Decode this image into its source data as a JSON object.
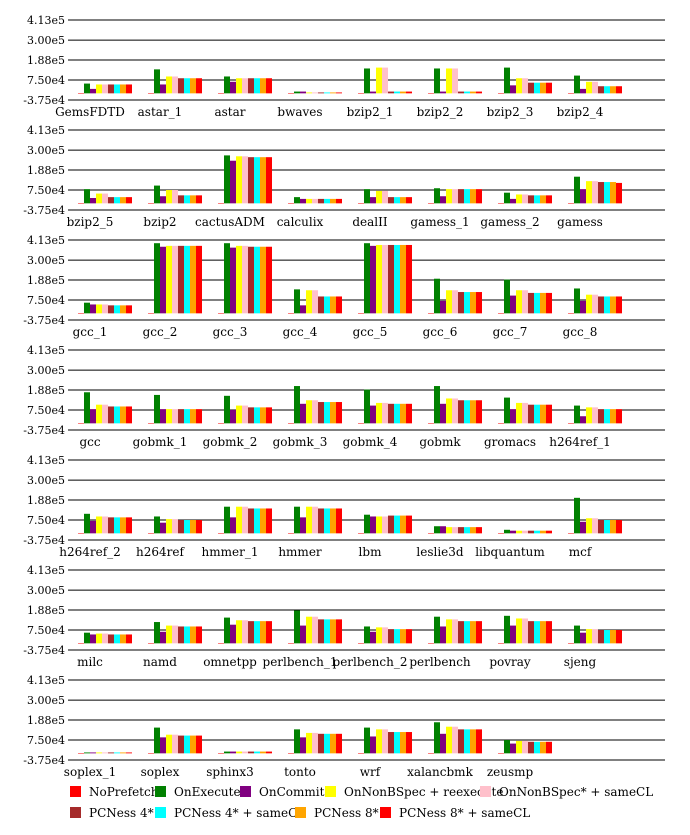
{
  "chart_data": {
    "type": "bar",
    "ylim": [
      -37500,
      413000
    ],
    "yticks": [
      -37500,
      75000,
      188000,
      300000,
      413000
    ],
    "ytick_labels": [
      "-3.75e4",
      "7.50e4",
      "1.88e5",
      "3.00e5",
      "4.13e5"
    ],
    "grid": "horizontal",
    "legend_position": "bottom",
    "series": [
      {
        "name": "NoPrefetch",
        "color": "#ff0000"
      },
      {
        "name": "OnExecute",
        "color": "#008000"
      },
      {
        "name": "OnCommit",
        "color": "#800080"
      },
      {
        "name": "OnNonBSpec + reexecute",
        "color": "#ffff00"
      },
      {
        "name": "OnNonBSpec* + sameCL",
        "color": "#ffc0cb"
      },
      {
        "name": "PCNess 4*",
        "color": "#a52a2a"
      },
      {
        "name": "PCNess 4* + sameCL",
        "color": "#00ffff"
      },
      {
        "name": "PCNess 8*",
        "color": "#ffa500"
      },
      {
        "name": "PCNess 8* + sameCL",
        "color": "#ff0000"
      }
    ],
    "panels": [
      {
        "categories": [
          "GemsFDTD",
          "astar_1",
          "astar",
          "bwaves",
          "bzip2_1",
          "bzip2_2",
          "bzip2_3",
          "bzip2_4"
        ],
        "values": [
          [
            0,
            55000,
            25000,
            50000,
            50000,
            50000,
            50000,
            50000,
            50000
          ],
          [
            0,
            135000,
            50000,
            95000,
            95000,
            85000,
            85000,
            85000,
            85000
          ],
          [
            0,
            95000,
            65000,
            85000,
            85000,
            85000,
            85000,
            85000,
            85000
          ],
          [
            0,
            10000,
            10000,
            5000,
            5000,
            5000,
            5000,
            5000,
            5000
          ],
          [
            0,
            140000,
            10000,
            145000,
            145000,
            10000,
            10000,
            10000,
            10000
          ],
          [
            0,
            140000,
            10000,
            140000,
            140000,
            10000,
            10000,
            10000,
            10000
          ],
          [
            0,
            145000,
            45000,
            85000,
            85000,
            60000,
            60000,
            60000,
            60000
          ],
          [
            0,
            100000,
            25000,
            65000,
            65000,
            40000,
            40000,
            40000,
            40000
          ]
        ]
      },
      {
        "categories": [
          "bzip2_5",
          "bzip2",
          "cactusADM",
          "calculix",
          "dealII",
          "gamess_1",
          "gamess_2",
          "gamess"
        ],
        "values": [
          [
            0,
            80000,
            30000,
            55000,
            55000,
            35000,
            35000,
            35000,
            35000
          ],
          [
            0,
            100000,
            40000,
            75000,
            75000,
            45000,
            45000,
            45000,
            45000
          ],
          [
            0,
            270000,
            240000,
            265000,
            265000,
            260000,
            260000,
            260000,
            260000
          ],
          [
            0,
            35000,
            25000,
            25000,
            25000,
            25000,
            25000,
            25000,
            25000
          ],
          [
            0,
            80000,
            35000,
            70000,
            70000,
            35000,
            35000,
            35000,
            35000
          ],
          [
            0,
            85000,
            40000,
            80000,
            80000,
            80000,
            80000,
            80000,
            80000
          ],
          [
            0,
            60000,
            25000,
            50000,
            50000,
            45000,
            45000,
            45000,
            45000
          ],
          [
            0,
            150000,
            80000,
            125000,
            125000,
            120000,
            120000,
            120000,
            115000
          ]
        ]
      },
      {
        "categories": [
          "gcc_1",
          "gcc_2",
          "gcc_3",
          "gcc_4",
          "gcc_5",
          "gcc_6",
          "gcc_7",
          "gcc_8"
        ],
        "values": [
          [
            0,
            60000,
            50000,
            50000,
            50000,
            45000,
            45000,
            45000,
            45000
          ],
          [
            0,
            395000,
            375000,
            380000,
            380000,
            380000,
            380000,
            380000,
            380000
          ],
          [
            0,
            395000,
            370000,
            380000,
            380000,
            375000,
            375000,
            375000,
            375000
          ],
          [
            0,
            135000,
            45000,
            130000,
            130000,
            95000,
            95000,
            95000,
            95000
          ],
          [
            0,
            395000,
            380000,
            385000,
            385000,
            385000,
            385000,
            385000,
            385000
          ],
          [
            0,
            195000,
            70000,
            130000,
            130000,
            120000,
            120000,
            120000,
            120000
          ],
          [
            0,
            190000,
            100000,
            130000,
            130000,
            115000,
            115000,
            115000,
            115000
          ],
          [
            0,
            140000,
            70000,
            105000,
            105000,
            95000,
            95000,
            95000,
            95000
          ]
        ]
      },
      {
        "categories": [
          "gcc",
          "gobmk_1",
          "gobmk_2",
          "gobmk_3",
          "gobmk_4",
          "gobmk",
          "gromacs",
          "h264ref_1"
        ],
        "values": [
          [
            0,
            175000,
            80000,
            105000,
            105000,
            95000,
            95000,
            95000,
            95000
          ],
          [
            0,
            160000,
            80000,
            80000,
            80000,
            80000,
            80000,
            80000,
            80000
          ],
          [
            0,
            155000,
            75000,
            100000,
            100000,
            90000,
            90000,
            90000,
            90000
          ],
          [
            0,
            210000,
            110000,
            130000,
            130000,
            120000,
            120000,
            120000,
            120000
          ],
          [
            0,
            190000,
            100000,
            115000,
            115000,
            110000,
            110000,
            110000,
            110000
          ],
          [
            0,
            210000,
            110000,
            140000,
            140000,
            130000,
            130000,
            130000,
            130000
          ],
          [
            0,
            145000,
            80000,
            115000,
            115000,
            105000,
            105000,
            105000,
            105000
          ],
          [
            0,
            100000,
            40000,
            90000,
            90000,
            80000,
            80000,
            80000,
            80000
          ]
        ]
      },
      {
        "categories": [
          "h264ref_2",
          "h264ref",
          "hmmer_1",
          "hmmer",
          "lbm",
          "leslie3d",
          "libquantum",
          "mcf"
        ],
        "values": [
          [
            0,
            110000,
            70000,
            95000,
            95000,
            90000,
            90000,
            90000,
            90000
          ],
          [
            0,
            95000,
            60000,
            80000,
            80000,
            75000,
            75000,
            75000,
            75000
          ],
          [
            0,
            150000,
            90000,
            150000,
            150000,
            140000,
            140000,
            140000,
            140000
          ],
          [
            0,
            150000,
            90000,
            150000,
            150000,
            140000,
            140000,
            140000,
            140000
          ],
          [
            0,
            105000,
            95000,
            95000,
            95000,
            100000,
            100000,
            100000,
            100000
          ],
          [
            0,
            40000,
            40000,
            35000,
            35000,
            35000,
            35000,
            35000,
            35000
          ],
          [
            0,
            20000,
            15000,
            15000,
            15000,
            15000,
            15000,
            15000,
            15000
          ],
          [
            0,
            200000,
            65000,
            85000,
            85000,
            75000,
            75000,
            75000,
            75000
          ]
        ]
      },
      {
        "categories": [
          "milc",
          "namd",
          "omnetpp",
          "perlbench_1",
          "perlbench_2",
          "perlbench",
          "povray",
          "sjeng"
        ],
        "values": [
          [
            0,
            60000,
            50000,
            55000,
            55000,
            50000,
            50000,
            50000,
            50000
          ],
          [
            0,
            120000,
            65000,
            100000,
            100000,
            95000,
            95000,
            95000,
            95000
          ],
          [
            0,
            145000,
            105000,
            130000,
            130000,
            125000,
            125000,
            125000,
            125000
          ],
          [
            0,
            185000,
            100000,
            150000,
            150000,
            135000,
            135000,
            135000,
            135000
          ],
          [
            0,
            95000,
            65000,
            90000,
            90000,
            80000,
            80000,
            80000,
            80000
          ],
          [
            0,
            150000,
            95000,
            135000,
            135000,
            125000,
            125000,
            125000,
            125000
          ],
          [
            0,
            155000,
            100000,
            140000,
            140000,
            125000,
            125000,
            125000,
            125000
          ],
          [
            0,
            100000,
            60000,
            80000,
            80000,
            75000,
            75000,
            75000,
            75000
          ]
        ]
      },
      {
        "categories": [
          "soplex_1",
          "soplex",
          "sphinx3",
          "tonto",
          "wrf",
          "xalancbmk",
          "zeusmp"
        ],
        "values": [
          [
            0,
            5000,
            5000,
            5000,
            5000,
            5000,
            5000,
            5000,
            5000
          ],
          [
            0,
            145000,
            90000,
            105000,
            105000,
            100000,
            100000,
            100000,
            100000
          ],
          [
            0,
            10000,
            10000,
            10000,
            10000,
            10000,
            10000,
            10000,
            10000
          ],
          [
            0,
            135000,
            90000,
            115000,
            115000,
            110000,
            110000,
            110000,
            110000
          ],
          [
            0,
            145000,
            95000,
            135000,
            135000,
            120000,
            120000,
            120000,
            120000
          ],
          [
            0,
            175000,
            110000,
            150000,
            150000,
            135000,
            135000,
            135000,
            135000
          ],
          [
            0,
            75000,
            55000,
            70000,
            70000,
            65000,
            65000,
            65000,
            65000
          ]
        ]
      }
    ]
  }
}
